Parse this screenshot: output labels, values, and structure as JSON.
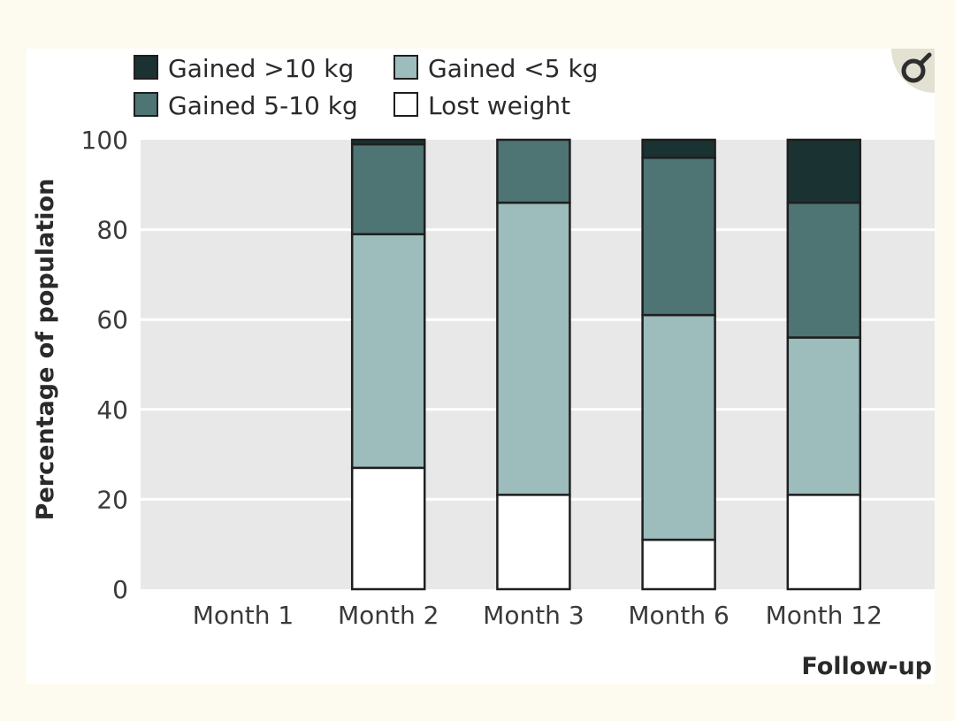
{
  "chart_data": {
    "type": "bar",
    "stacked": true,
    "categories": [
      "Month 1",
      "Month 2",
      "Month 3",
      "Month 6",
      "Month 12"
    ],
    "series": [
      {
        "name": "Lost weight",
        "values": [
          null,
          27,
          21,
          11,
          21
        ],
        "color": "#ffffff"
      },
      {
        "name": "Gained <5 kg",
        "values": [
          null,
          52,
          65,
          50,
          35
        ],
        "color": "#9dbcbc"
      },
      {
        "name": "Gained 5-10 kg",
        "values": [
          null,
          20,
          14,
          35,
          30
        ],
        "color": "#4e7574"
      },
      {
        "name": "Gained >10 kg",
        "values": [
          null,
          1,
          0,
          4,
          14
        ],
        "color": "#1a3231"
      }
    ],
    "legend_order": [
      "Gained >10 kg",
      "Gained <5 kg",
      "Gained 5-10 kg",
      "Lost weight"
    ],
    "legend_position": "top-left",
    "xlabel": "Follow-up",
    "ylabel": "Percentage of population",
    "ylim": [
      0,
      100
    ],
    "yticks": [
      0,
      20,
      40,
      60,
      80,
      100
    ],
    "grid": true,
    "plot_background": "#e8e8e8"
  },
  "logo_icon": "open-access-icon",
  "logo_color": "#2e2e2e"
}
